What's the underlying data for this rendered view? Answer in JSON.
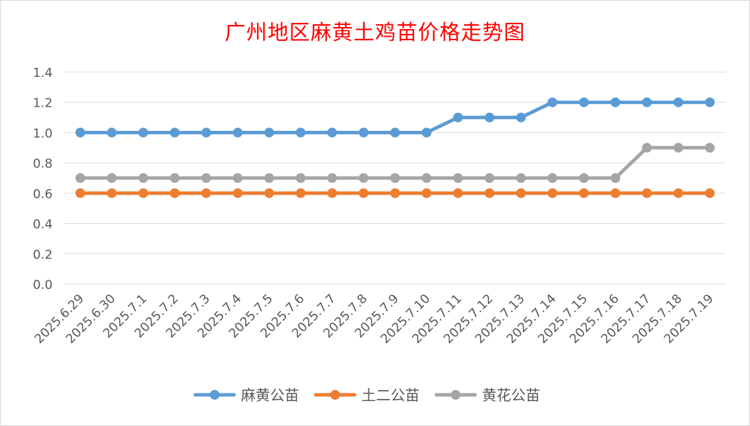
{
  "chart_data": {
    "type": "line",
    "title": "广州地区麻黄土鸡苗价格走势图",
    "xlabel": "",
    "ylabel": "",
    "categories": [
      "2025.6.29",
      "2025.6.30",
      "2025.7.1",
      "2025.7.2",
      "2025.7.3",
      "2025.7.4",
      "2025.7.5",
      "2025.7.6",
      "2025.7.7",
      "2025.7.8",
      "2025.7.9",
      "2025.7.10",
      "2025.7.11",
      "2025.7.12",
      "2025.7.13",
      "2025.7.14",
      "2025.7.15",
      "2025.7.16",
      "2025.7.17",
      "2025.7.18",
      "2025.7.19"
    ],
    "ylim": [
      0,
      1.4
    ],
    "yticks": [
      "0.0",
      "0.2",
      "0.4",
      "0.6",
      "0.8",
      "1.0",
      "1.2",
      "1.4"
    ],
    "grid": true,
    "legend_position": "bottom",
    "series": [
      {
        "name": "麻黄公苗",
        "color": "#5b9bd5",
        "values": [
          1.0,
          1.0,
          1.0,
          1.0,
          1.0,
          1.0,
          1.0,
          1.0,
          1.0,
          1.0,
          1.0,
          1.0,
          1.1,
          1.1,
          1.1,
          1.2,
          1.2,
          1.2,
          1.2,
          1.2,
          1.2
        ]
      },
      {
        "name": "土二公苗",
        "color": "#ed7d31",
        "values": [
          0.6,
          0.6,
          0.6,
          0.6,
          0.6,
          0.6,
          0.6,
          0.6,
          0.6,
          0.6,
          0.6,
          0.6,
          0.6,
          0.6,
          0.6,
          0.6,
          0.6,
          0.6,
          0.6,
          0.6,
          0.6
        ]
      },
      {
        "name": "黄花公苗",
        "color": "#a5a5a5",
        "values": [
          0.7,
          0.7,
          0.7,
          0.7,
          0.7,
          0.7,
          0.7,
          0.7,
          0.7,
          0.7,
          0.7,
          0.7,
          0.7,
          0.7,
          0.7,
          0.7,
          0.7,
          0.7,
          0.9,
          0.9,
          0.9
        ]
      }
    ]
  }
}
